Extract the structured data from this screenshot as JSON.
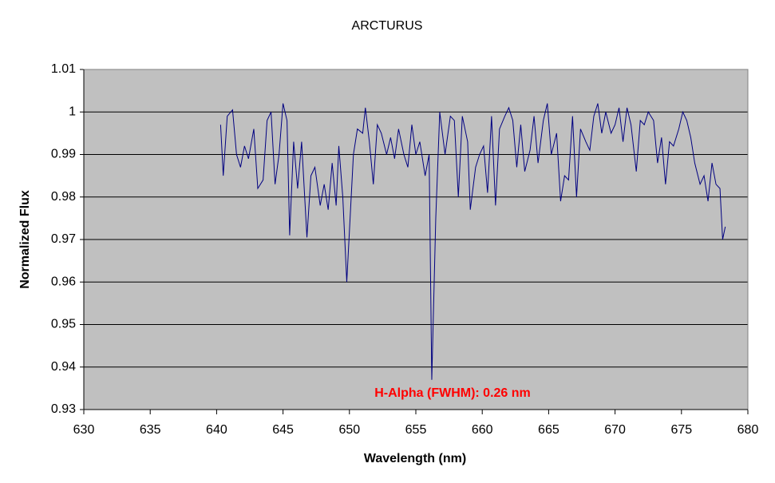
{
  "chart_data": {
    "type": "line",
    "title": "ARCTURUS",
    "x_label": "Wavelength (nm)",
    "y_label": "Normalized Flux",
    "annotation": "H-Alpha (FWHM): 0.26 nm",
    "x": [
      640.3,
      640.5,
      640.8,
      641.2,
      641.5,
      641.8,
      642.1,
      642.4,
      642.8,
      643.1,
      643.5,
      643.8,
      644.1,
      644.4,
      644.7,
      645.0,
      645.3,
      645.5,
      645.8,
      646.1,
      646.4,
      646.8,
      647.1,
      647.4,
      647.8,
      648.1,
      648.4,
      648.7,
      649.0,
      649.2,
      649.5,
      649.8,
      650.0,
      650.3,
      650.6,
      651.0,
      651.2,
      651.5,
      651.8,
      652.1,
      652.4,
      652.8,
      653.1,
      653.4,
      653.7,
      654.1,
      654.4,
      654.7,
      655.0,
      655.3,
      655.7,
      656.0,
      656.2,
      656.5,
      656.8,
      657.2,
      657.6,
      657.9,
      658.2,
      658.5,
      658.9,
      659.1,
      659.5,
      659.8,
      660.1,
      660.4,
      660.7,
      661.0,
      661.3,
      661.7,
      662.0,
      662.3,
      662.6,
      662.9,
      663.2,
      663.6,
      663.9,
      664.2,
      664.6,
      664.9,
      665.2,
      665.6,
      665.9,
      666.2,
      666.5,
      666.8,
      667.1,
      667.4,
      667.8,
      668.1,
      668.4,
      668.7,
      669.0,
      669.3,
      669.7,
      670.0,
      670.3,
      670.6,
      670.9,
      671.2,
      671.6,
      671.9,
      672.2,
      672.5,
      672.9,
      673.2,
      673.5,
      673.8,
      674.1,
      674.4,
      674.8,
      675.1,
      675.4,
      675.7,
      676.0,
      676.4,
      676.7,
      677.0,
      677.3,
      677.6,
      677.9,
      678.1,
      678.3
    ],
    "series": [
      {
        "name": "ARCTURUS",
        "color": "#000080",
        "values": [
          0.997,
          0.985,
          0.999,
          1.0005,
          0.99,
          0.987,
          0.992,
          0.989,
          0.996,
          0.982,
          0.984,
          0.998,
          1.0,
          0.983,
          0.99,
          1.002,
          0.998,
          0.971,
          0.993,
          0.982,
          0.993,
          0.9705,
          0.985,
          0.987,
          0.978,
          0.983,
          0.977,
          0.988,
          0.978,
          0.992,
          0.98,
          0.96,
          0.972,
          0.99,
          0.996,
          0.995,
          1.001,
          0.993,
          0.983,
          0.997,
          0.995,
          0.99,
          0.994,
          0.989,
          0.996,
          0.99,
          0.987,
          0.997,
          0.99,
          0.993,
          0.985,
          0.99,
          0.937,
          0.975,
          1.0,
          0.99,
          0.999,
          0.998,
          0.98,
          0.999,
          0.993,
          0.977,
          0.987,
          0.99,
          0.992,
          0.981,
          0.999,
          0.978,
          0.996,
          0.999,
          1.001,
          0.998,
          0.987,
          0.997,
          0.986,
          0.991,
          0.999,
          0.988,
          0.998,
          1.002,
          0.99,
          0.995,
          0.979,
          0.985,
          0.984,
          0.999,
          0.98,
          0.996,
          0.993,
          0.991,
          0.999,
          1.002,
          0.995,
          1.0,
          0.995,
          0.997,
          1.001,
          0.993,
          1.001,
          0.997,
          0.986,
          0.998,
          0.997,
          1.0,
          0.998,
          0.988,
          0.994,
          0.983,
          0.993,
          0.992,
          0.996,
          1.0,
          0.998,
          0.994,
          0.988,
          0.983,
          0.985,
          0.979,
          0.988,
          0.983,
          0.982,
          0.97,
          0.973
        ]
      }
    ],
    "xlim": [
      630,
      680
    ],
    "xticks": [
      630,
      635,
      640,
      645,
      650,
      655,
      660,
      665,
      670,
      675,
      680
    ],
    "ylim": [
      0.93,
      1.01
    ],
    "yticks": [
      0.93,
      0.94,
      0.95,
      0.96,
      0.97,
      0.98,
      0.99,
      1,
      1.01
    ],
    "grid": true
  }
}
